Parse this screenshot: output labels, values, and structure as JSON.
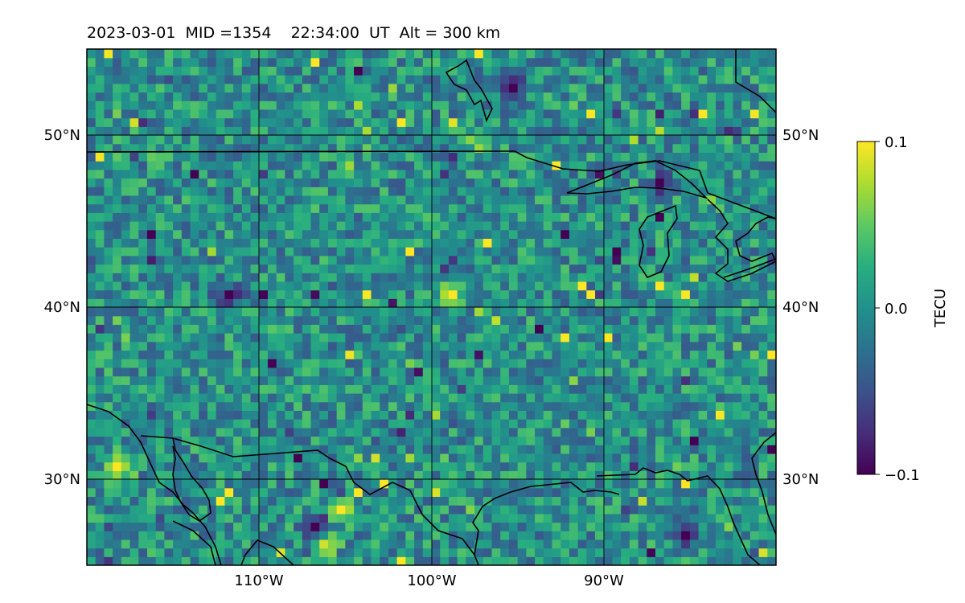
{
  "title": "2023-03-01  MID =1354    22:34:00  UT  Alt = 300 km",
  "colors": {
    "colormap": "viridis",
    "coastline": "#000000",
    "gridline": "#000000"
  },
  "chart_data": {
    "type": "heatmap",
    "title": "2023-03-01  MID =1354    22:34:00  UT  Alt = 300 km",
    "projection": "PlateCarree",
    "xlim": [
      -120,
      -80
    ],
    "ylim": [
      25,
      55
    ],
    "x_ticks": [
      -110,
      -100,
      -90
    ],
    "y_ticks": [
      30,
      40,
      50
    ],
    "x_tick_labels": [
      "110°W",
      "100°W",
      "90°W"
    ],
    "y_tick_labels_left": [
      "30°N",
      "40°N",
      "50°N"
    ],
    "y_tick_labels_right": [
      "30°N",
      "40°N",
      "50°N"
    ],
    "grid": true,
    "colorbar": {
      "label": "TECU",
      "vmin": -0.1,
      "vmax": 0.1,
      "ticks": [
        -0.1,
        0.0,
        0.1
      ],
      "tick_labels": [
        "−0.1",
        "0.0",
        "0.1"
      ]
    },
    "grid_resolution_deg": 0.5,
    "field_description_values": {
      "background_mean": 0.0,
      "noted_peaks": [
        {
          "lon": -106.5,
          "lat": 26.0,
          "value": 0.1
        },
        {
          "lon": -118.5,
          "lat": 30.5,
          "value": 0.1
        },
        {
          "lon": -105.5,
          "lat": 28.0,
          "value": 0.1
        },
        {
          "lon": -99.0,
          "lat": 40.5,
          "value": 0.1
        }
      ],
      "noted_troughs": [
        {
          "lon": -95.5,
          "lat": 52.5,
          "value": -0.1
        },
        {
          "lon": -87.0,
          "lat": 47.0,
          "value": -0.1
        },
        {
          "lon": -85.5,
          "lat": 26.5,
          "value": -0.1
        },
        {
          "lon": -107.0,
          "lat": 27.0,
          "value": -0.1
        },
        {
          "lon": -112.0,
          "lat": 40.5,
          "value": -0.1
        }
      ]
    }
  }
}
